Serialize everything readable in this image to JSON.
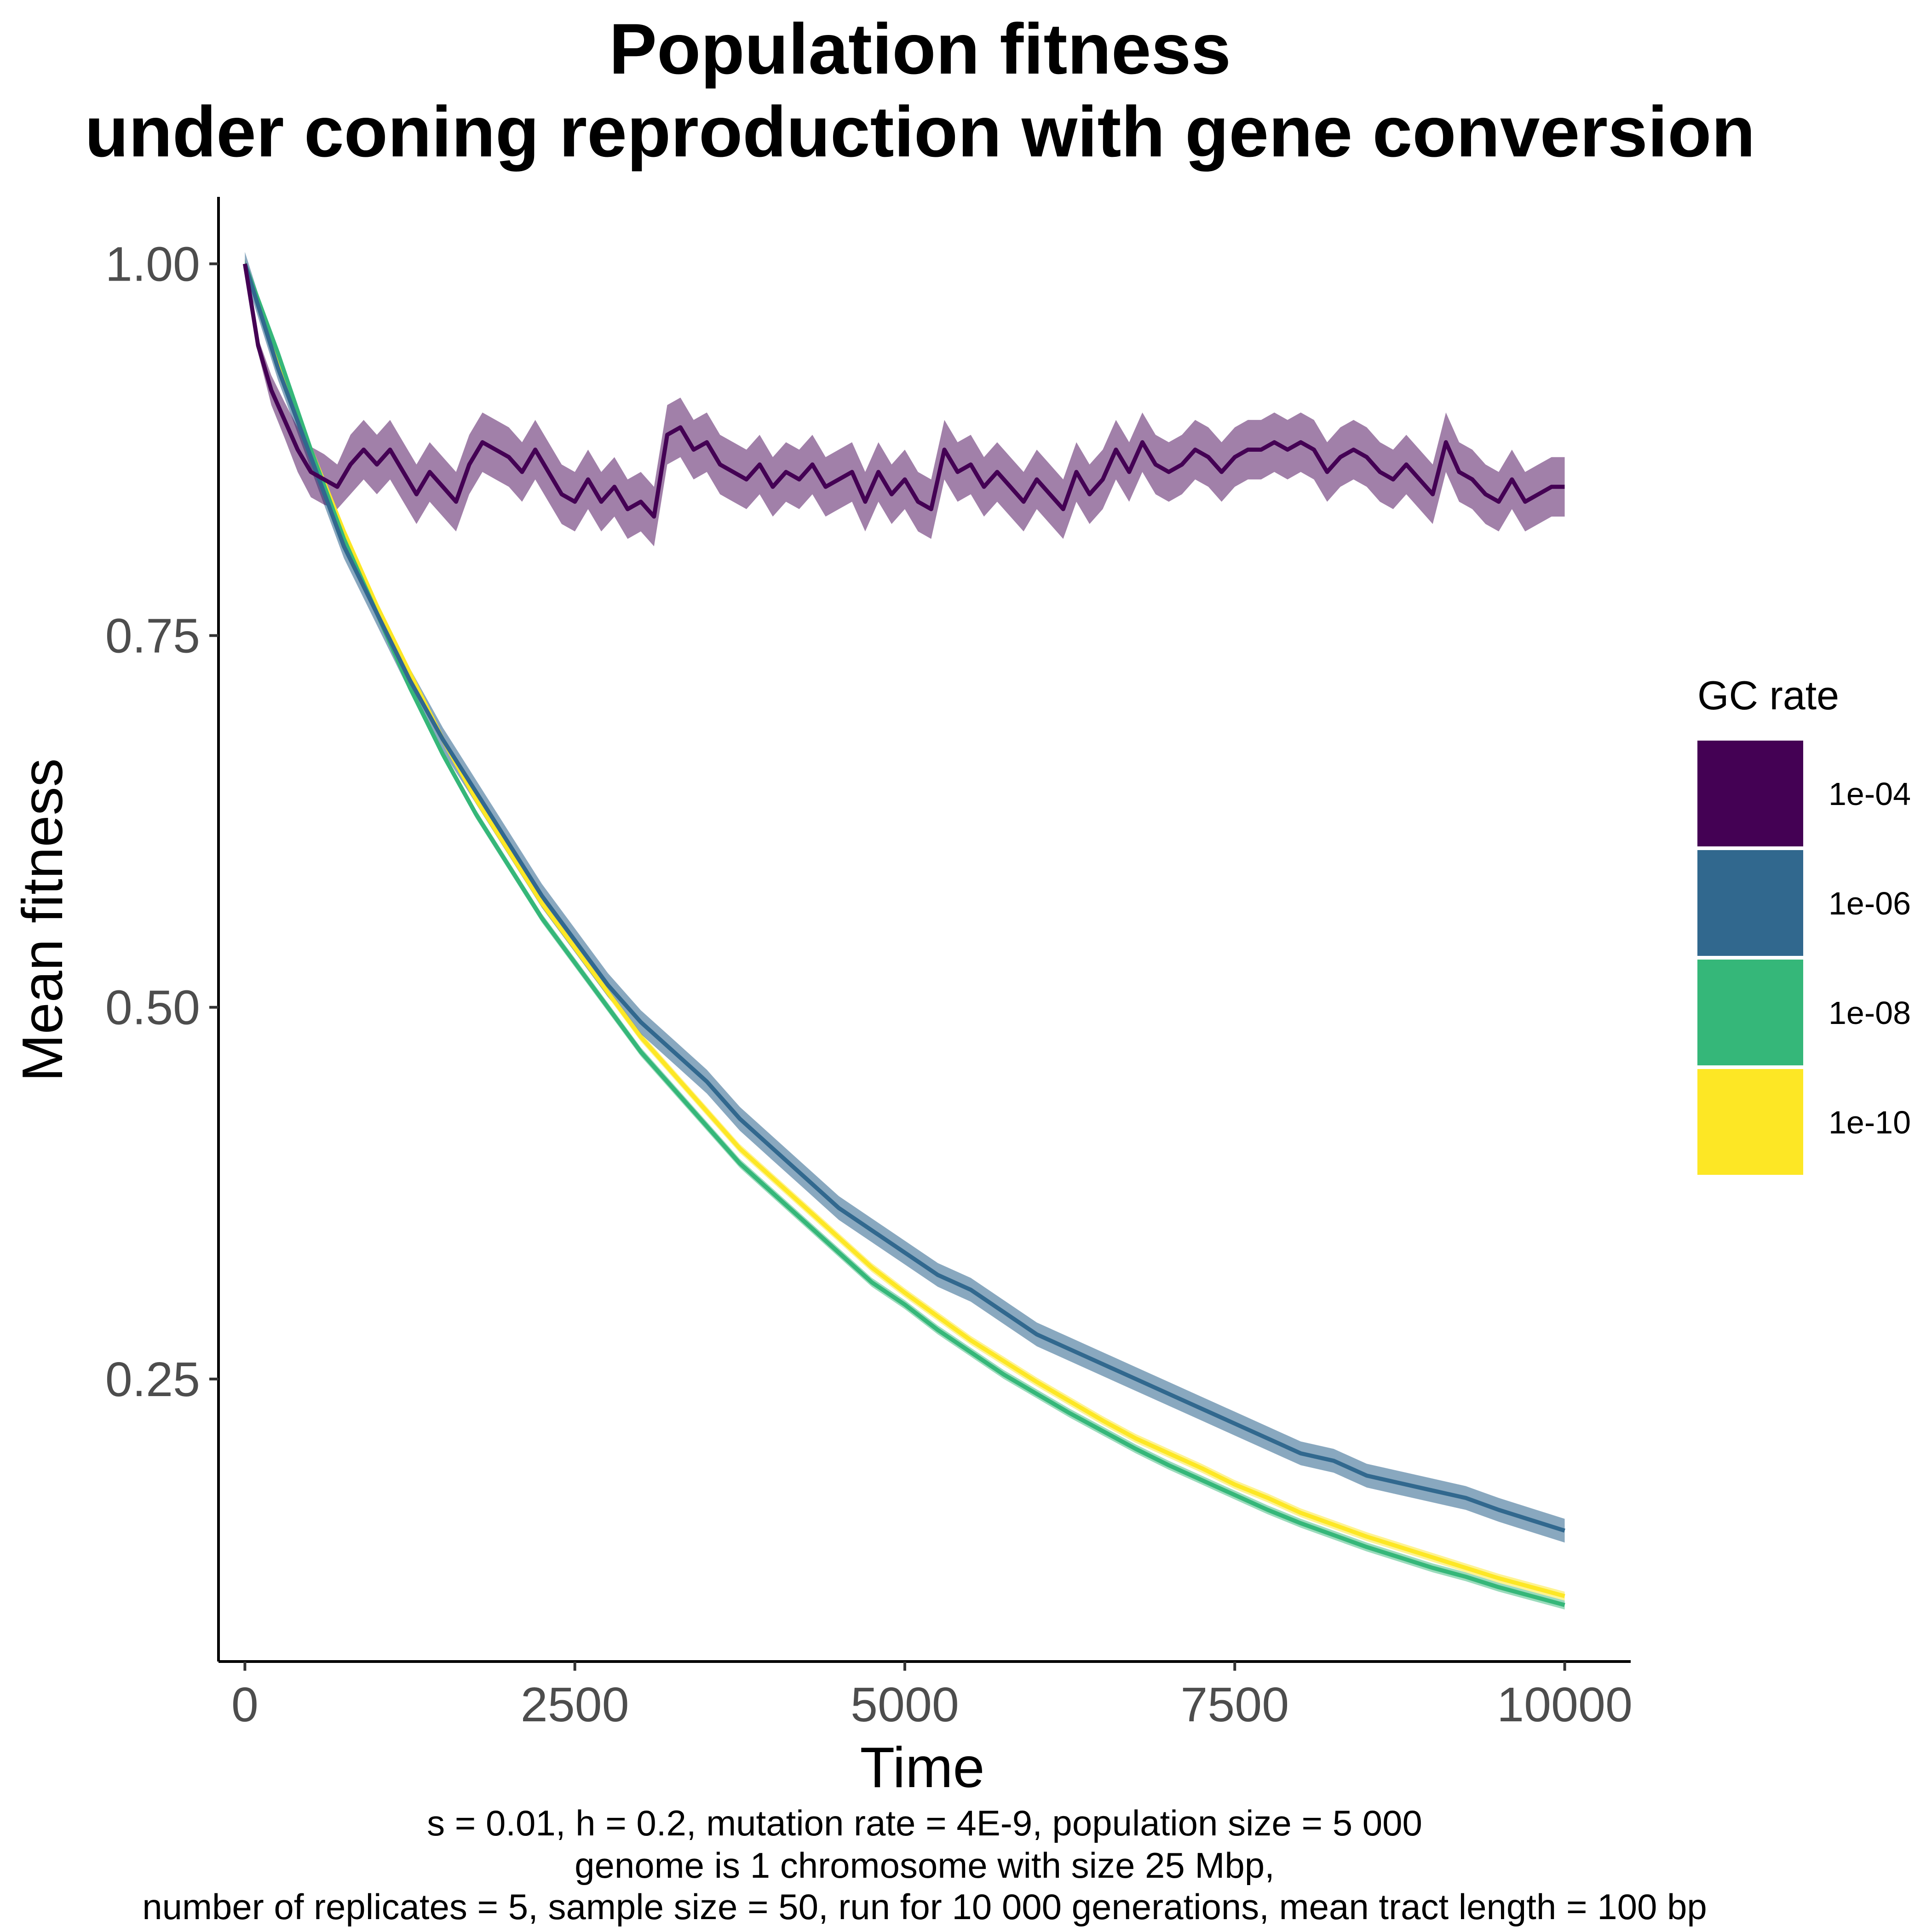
{
  "chart_data": {
    "type": "line",
    "title": [
      "Population fitness",
      "under coning reproduction with gene conversion"
    ],
    "xlabel": "Time",
    "ylabel": "Mean fitness",
    "xlim": [
      -200,
      10500
    ],
    "ylim": [
      0.06,
      1.045
    ],
    "x_ticks": [
      0,
      2500,
      5000,
      7500,
      10000
    ],
    "x_tick_labels": [
      "0",
      "2500",
      "5000",
      "7500",
      "10000"
    ],
    "y_ticks": [
      0.25,
      0.5,
      0.75,
      1.0
    ],
    "y_tick_labels": [
      "0.25",
      "0.50",
      "0.75",
      "1.00"
    ],
    "grid": false,
    "legend": {
      "title": "GC rate",
      "position": "right"
    },
    "caption": [
      "s = 0.01, h = 0.2, mutation rate = 4E-9, population size = 5 000",
      "genome is 1 chromosome with size 25 Mbp,",
      "number of replicates = 5, sample size = 50, run for 10 000 generations, mean tract length = 100 bp"
    ],
    "series": [
      {
        "name": "1e-04",
        "color": "#440154",
        "band_color": "#440154",
        "band_opacity": 0.5,
        "x": [
          0,
          100,
          200,
          300,
          400,
          500,
          600,
          700,
          800,
          900,
          1000,
          1100,
          1200,
          1300,
          1400,
          1500,
          1600,
          1700,
          1800,
          1900,
          2000,
          2100,
          2200,
          2300,
          2400,
          2500,
          2600,
          2700,
          2800,
          2900,
          3000,
          3100,
          3200,
          3300,
          3400,
          3500,
          3600,
          3700,
          3800,
          3900,
          4000,
          4100,
          4200,
          4300,
          4400,
          4500,
          4600,
          4700,
          4800,
          4900,
          5000,
          5100,
          5200,
          5300,
          5400,
          5500,
          5600,
          5700,
          5800,
          5900,
          6000,
          6100,
          6200,
          6300,
          6400,
          6500,
          6600,
          6700,
          6800,
          6900,
          7000,
          7100,
          7200,
          7300,
          7400,
          7500,
          7600,
          7700,
          7800,
          7900,
          8000,
          8100,
          8200,
          8300,
          8400,
          8500,
          8600,
          8700,
          8800,
          8900,
          9000,
          9100,
          9200,
          9300,
          9400,
          9500,
          9600,
          9700,
          9800,
          9900,
          10000
        ],
        "y": [
          1.0,
          0.945,
          0.915,
          0.895,
          0.875,
          0.86,
          0.855,
          0.85,
          0.865,
          0.875,
          0.865,
          0.875,
          0.86,
          0.845,
          0.86,
          0.85,
          0.84,
          0.865,
          0.88,
          0.875,
          0.87,
          0.86,
          0.875,
          0.86,
          0.845,
          0.84,
          0.855,
          0.84,
          0.85,
          0.835,
          0.84,
          0.83,
          0.885,
          0.89,
          0.875,
          0.88,
          0.865,
          0.86,
          0.855,
          0.865,
          0.85,
          0.86,
          0.855,
          0.865,
          0.85,
          0.855,
          0.86,
          0.84,
          0.86,
          0.845,
          0.855,
          0.84,
          0.835,
          0.875,
          0.86,
          0.865,
          0.85,
          0.86,
          0.85,
          0.84,
          0.855,
          0.845,
          0.835,
          0.86,
          0.845,
          0.855,
          0.875,
          0.86,
          0.88,
          0.865,
          0.86,
          0.865,
          0.875,
          0.87,
          0.86,
          0.87,
          0.875,
          0.875,
          0.88,
          0.875,
          0.88,
          0.875,
          0.86,
          0.87,
          0.875,
          0.87,
          0.86,
          0.855,
          0.865,
          0.855,
          0.845,
          0.88,
          0.86,
          0.855,
          0.845,
          0.84,
          0.855,
          0.84,
          0.845,
          0.85,
          0.85
        ],
        "lo": [
          1.0,
          0.94,
          0.905,
          0.883,
          0.86,
          0.843,
          0.838,
          0.835,
          0.845,
          0.855,
          0.845,
          0.855,
          0.84,
          0.825,
          0.84,
          0.83,
          0.82,
          0.845,
          0.86,
          0.855,
          0.85,
          0.84,
          0.855,
          0.84,
          0.825,
          0.82,
          0.835,
          0.82,
          0.83,
          0.815,
          0.82,
          0.81,
          0.865,
          0.87,
          0.855,
          0.86,
          0.845,
          0.84,
          0.835,
          0.845,
          0.83,
          0.84,
          0.835,
          0.845,
          0.83,
          0.835,
          0.84,
          0.82,
          0.84,
          0.825,
          0.835,
          0.82,
          0.815,
          0.855,
          0.84,
          0.845,
          0.83,
          0.84,
          0.83,
          0.82,
          0.835,
          0.825,
          0.815,
          0.84,
          0.825,
          0.835,
          0.855,
          0.84,
          0.86,
          0.845,
          0.84,
          0.845,
          0.855,
          0.85,
          0.84,
          0.85,
          0.855,
          0.855,
          0.86,
          0.855,
          0.86,
          0.855,
          0.84,
          0.85,
          0.855,
          0.85,
          0.84,
          0.835,
          0.845,
          0.835,
          0.825,
          0.86,
          0.84,
          0.835,
          0.825,
          0.82,
          0.835,
          0.82,
          0.825,
          0.83,
          0.83
        ],
        "hi": [
          1.0,
          0.95,
          0.925,
          0.907,
          0.89,
          0.877,
          0.872,
          0.865,
          0.885,
          0.895,
          0.885,
          0.895,
          0.88,
          0.865,
          0.88,
          0.87,
          0.86,
          0.885,
          0.9,
          0.895,
          0.89,
          0.88,
          0.895,
          0.88,
          0.865,
          0.86,
          0.875,
          0.86,
          0.87,
          0.855,
          0.86,
          0.85,
          0.905,
          0.91,
          0.895,
          0.9,
          0.885,
          0.88,
          0.875,
          0.885,
          0.87,
          0.88,
          0.875,
          0.885,
          0.87,
          0.875,
          0.88,
          0.86,
          0.88,
          0.865,
          0.875,
          0.86,
          0.855,
          0.895,
          0.88,
          0.885,
          0.87,
          0.88,
          0.87,
          0.86,
          0.875,
          0.865,
          0.855,
          0.88,
          0.865,
          0.875,
          0.895,
          0.88,
          0.9,
          0.885,
          0.88,
          0.885,
          0.895,
          0.89,
          0.88,
          0.89,
          0.895,
          0.895,
          0.9,
          0.895,
          0.9,
          0.895,
          0.88,
          0.89,
          0.895,
          0.89,
          0.88,
          0.875,
          0.885,
          0.875,
          0.865,
          0.9,
          0.88,
          0.875,
          0.865,
          0.86,
          0.875,
          0.86,
          0.865,
          0.87,
          0.87
        ]
      },
      {
        "name": "1e-06",
        "color": "#31688E",
        "band_color": "#3B6E94",
        "band_opacity": 0.6,
        "x": [
          0,
          250,
          500,
          750,
          1000,
          1250,
          1500,
          1750,
          2000,
          2250,
          2500,
          2750,
          3000,
          3250,
          3500,
          3750,
          4000,
          4250,
          4500,
          4750,
          5000,
          5250,
          5500,
          5750,
          6000,
          6250,
          6500,
          6750,
          7000,
          7250,
          7500,
          7750,
          8000,
          8250,
          8500,
          8750,
          9000,
          9250,
          9500,
          9750,
          10000
        ],
        "y": [
          1.0,
          0.93,
          0.87,
          0.81,
          0.765,
          0.72,
          0.68,
          0.645,
          0.61,
          0.575,
          0.545,
          0.515,
          0.49,
          0.47,
          0.45,
          0.425,
          0.405,
          0.385,
          0.365,
          0.35,
          0.335,
          0.32,
          0.31,
          0.295,
          0.28,
          0.27,
          0.26,
          0.25,
          0.24,
          0.23,
          0.22,
          0.21,
          0.2,
          0.195,
          0.185,
          0.18,
          0.175,
          0.17,
          0.162,
          0.155,
          0.148
        ],
        "band": 0.008
      },
      {
        "name": "1e-08",
        "color": "#35B779",
        "band_color": "#35B779",
        "band_opacity": 0.5,
        "x": [
          0,
          250,
          500,
          750,
          1000,
          1250,
          1500,
          1750,
          2000,
          2250,
          2500,
          2750,
          3000,
          3250,
          3500,
          3750,
          4000,
          4250,
          4500,
          4750,
          5000,
          5250,
          5500,
          5750,
          6000,
          6250,
          6500,
          6750,
          7000,
          7250,
          7500,
          7750,
          8000,
          8250,
          8500,
          8750,
          9000,
          9250,
          9500,
          9750,
          10000
        ],
        "y": [
          1.0,
          0.94,
          0.875,
          0.815,
          0.765,
          0.715,
          0.67,
          0.63,
          0.595,
          0.56,
          0.53,
          0.5,
          0.47,
          0.445,
          0.42,
          0.395,
          0.375,
          0.355,
          0.335,
          0.315,
          0.3,
          0.283,
          0.268,
          0.253,
          0.24,
          0.227,
          0.215,
          0.203,
          0.192,
          0.182,
          0.172,
          0.162,
          0.153,
          0.145,
          0.137,
          0.13,
          0.123,
          0.117,
          0.11,
          0.104,
          0.098
        ],
        "band": 0.003
      },
      {
        "name": "1e-10",
        "color": "#FDE725",
        "band_color": "#FDE725",
        "band_opacity": 0.5,
        "x": [
          0,
          250,
          500,
          750,
          1000,
          1250,
          1500,
          1750,
          2000,
          2250,
          2500,
          2750,
          3000,
          3250,
          3500,
          3750,
          4000,
          4250,
          4500,
          4750,
          5000,
          5250,
          5500,
          5750,
          6000,
          6250,
          6500,
          6750,
          7000,
          7250,
          7500,
          7750,
          8000,
          8250,
          8500,
          8750,
          9000,
          9250,
          9500,
          9750,
          10000
        ],
        "y": [
          1.0,
          0.935,
          0.875,
          0.82,
          0.77,
          0.725,
          0.68,
          0.64,
          0.605,
          0.57,
          0.54,
          0.51,
          0.48,
          0.455,
          0.43,
          0.405,
          0.385,
          0.365,
          0.345,
          0.325,
          0.308,
          0.292,
          0.276,
          0.262,
          0.248,
          0.235,
          0.222,
          0.21,
          0.2,
          0.19,
          0.179,
          0.17,
          0.16,
          0.152,
          0.144,
          0.137,
          0.13,
          0.123,
          0.116,
          0.11,
          0.104
        ],
        "band": 0.003
      }
    ]
  }
}
